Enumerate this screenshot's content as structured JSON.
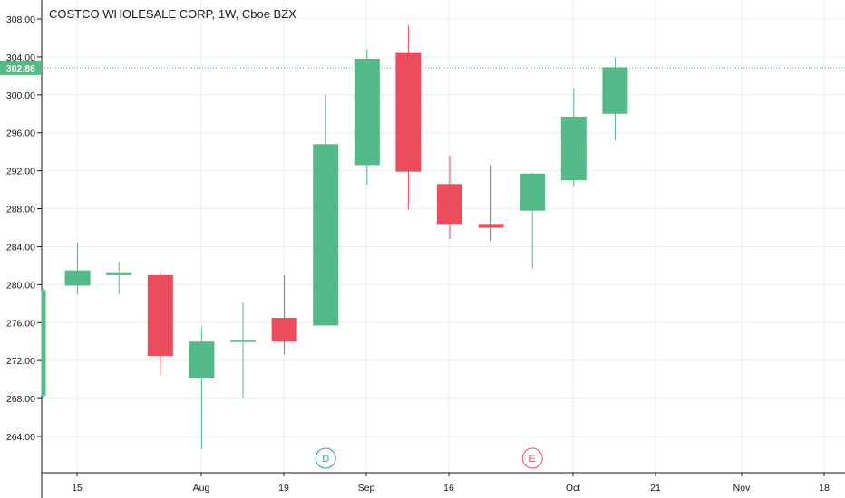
{
  "title": "COSTCO WHOLESALE CORP, 1W, Cboe BZX",
  "colors": {
    "up": "#53b987",
    "down": "#eb4d5c",
    "grid": "#e6eef1",
    "axis": "#131722",
    "last_price": "#53b987"
  },
  "chart_data": {
    "type": "candlestick",
    "title": "COSTCO WHOLESALE CORP, 1W, Cboe BZX",
    "ylim": [
      260,
      310
    ],
    "y_ticks": [
      "264.00",
      "268.00",
      "272.00",
      "276.00",
      "280.00",
      "284.00",
      "288.00",
      "292.00",
      "296.00",
      "300.00",
      "304.00",
      "308.00"
    ],
    "x_ticks": [
      "15",
      "Aug",
      "19",
      "Sep",
      "16",
      "Oct",
      "21",
      "Nov",
      "18"
    ],
    "last_price": {
      "value": 302.86,
      "label": "302.86"
    },
    "candles": [
      {
        "week": 0,
        "open": 268.3,
        "high": 279.6,
        "low": 268.0,
        "close": 279.4
      },
      {
        "week": 1,
        "open": 279.9,
        "high": 284.4,
        "low": 279.0,
        "close": 281.5
      },
      {
        "week": 2,
        "open": 281.0,
        "high": 282.4,
        "low": 279.0,
        "close": 281.3
      },
      {
        "week": 3,
        "open": 281.0,
        "high": 281.3,
        "low": 270.5,
        "close": 272.5
      },
      {
        "week": 4,
        "open": 270.1,
        "high": 275.5,
        "low": 262.7,
        "close": 274.0
      },
      {
        "week": 5,
        "open": 274.0,
        "high": 278.1,
        "low": 268.0,
        "close": 274.1
      },
      {
        "week": 6,
        "open": 276.5,
        "high": 281.0,
        "low": 272.7,
        "close": 274.0
      },
      {
        "week": 7,
        "open": 275.7,
        "high": 300.0,
        "low": 275.7,
        "close": 294.8
      },
      {
        "week": 8,
        "open": 292.6,
        "high": 304.8,
        "low": 290.5,
        "close": 303.8
      },
      {
        "week": 9,
        "open": 304.5,
        "high": 307.3,
        "low": 287.9,
        "close": 291.9
      },
      {
        "week": 10,
        "open": 290.6,
        "high": 293.6,
        "low": 284.8,
        "close": 286.4
      },
      {
        "week": 11,
        "open": 286.4,
        "high": 292.6,
        "low": 284.6,
        "close": 286.0
      },
      {
        "week": 12,
        "open": 287.8,
        "high": 291.8,
        "low": 281.7,
        "close": 291.7
      },
      {
        "week": 13,
        "open": 291.0,
        "high": 300.7,
        "low": 290.4,
        "close": 297.7
      },
      {
        "week": 14,
        "open": 298.0,
        "high": 304.0,
        "low": 295.2,
        "close": 302.9
      }
    ],
    "events": [
      {
        "week": 7,
        "label": "D",
        "color": "#26a69a"
      },
      {
        "week": 12,
        "label": "E",
        "color": "#eb4d5c"
      }
    ]
  }
}
